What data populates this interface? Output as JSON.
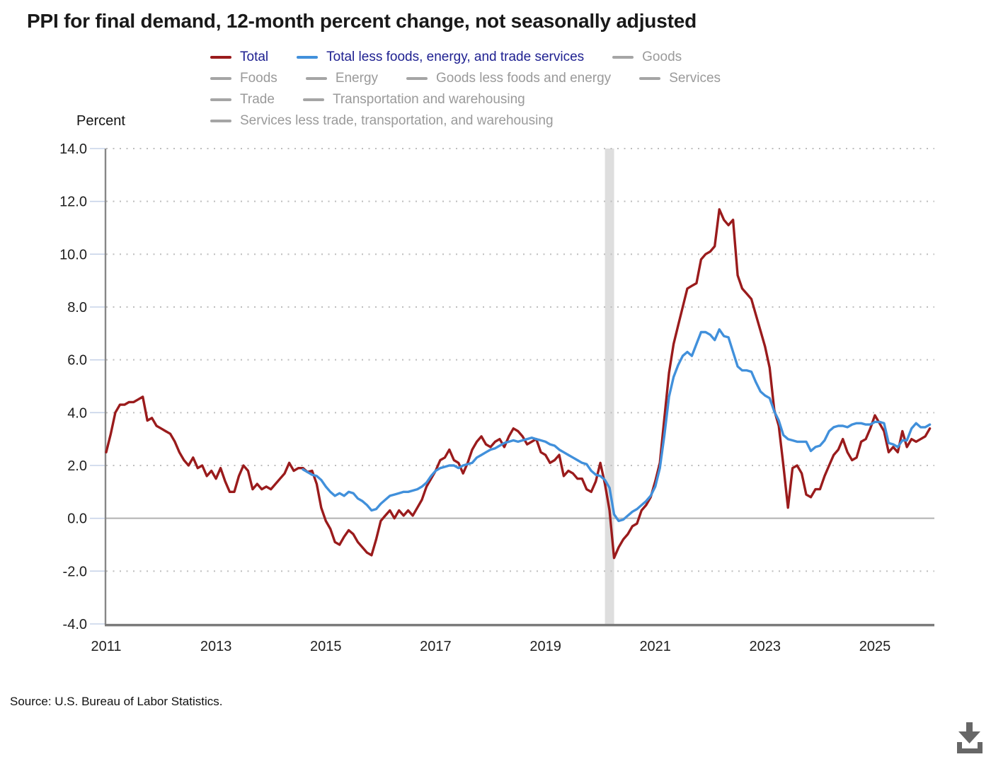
{
  "source": {
    "text": "Source: U.S. Bureau of Labor Statistics."
  },
  "legend": {
    "active_text_color": "#1F2191",
    "inactive_text_color": "#9A9A9A",
    "inactive_swatch_color": "#A5A5A5",
    "rows": [
      [
        {
          "label": "Total",
          "color": "#9A1B1C",
          "active": true
        },
        {
          "label": "Total less foods, energy, and trade services",
          "color": "#4190DB",
          "active": true
        },
        {
          "label": "Goods",
          "color": "#A5A5A5",
          "active": false
        }
      ],
      [
        {
          "label": "Foods",
          "color": "#A5A5A5",
          "active": false
        },
        {
          "label": "Energy",
          "color": "#A5A5A5",
          "active": false
        },
        {
          "label": "Goods less foods and energy",
          "color": "#A5A5A5",
          "active": false
        },
        {
          "label": "Services",
          "color": "#A5A5A5",
          "active": false
        }
      ],
      [
        {
          "label": "Trade",
          "color": "#A5A5A5",
          "active": false
        },
        {
          "label": "Transportation and warehousing",
          "color": "#A5A5A5",
          "active": false
        }
      ],
      [
        {
          "label": "Services less trade, transportation, and warehousing",
          "color": "#A5A5A5",
          "active": false
        }
      ]
    ]
  },
  "chart_data": {
    "type": "line",
    "title": "PPI for final demand, 12-month percent change, not seasonally adjusted",
    "ylabel": "Percent",
    "xlabel": "",
    "grid": true,
    "legend_position": "top",
    "y_ticks": [
      14,
      12,
      10,
      8,
      6,
      4,
      2,
      0,
      -2,
      -4
    ],
    "x_ticks": [
      2011,
      2013,
      2015,
      2017,
      2019,
      2021,
      2023,
      2025
    ],
    "y_range": [
      -4,
      14
    ],
    "x_range": [
      2011.0,
      2026.083
    ],
    "recession_band": {
      "start": 2020.083,
      "end": 2020.25
    },
    "colors": {
      "gridline": "#BDBDBD",
      "zero_line": "#B1B1B1",
      "axis_left": "#878787",
      "axis_bottom": "#7A7A7A",
      "tick": "#C7D3E8",
      "recession_band": "#DEDEDE",
      "download_icon": "#676767"
    },
    "series": [
      {
        "name": "Total",
        "color": "#9A1B1C",
        "visible": true,
        "start": "2011-01",
        "values": [
          2.5,
          3.2,
          4.0,
          4.3,
          4.3,
          4.4,
          4.4,
          4.5,
          4.6,
          3.7,
          3.8,
          3.5,
          3.4,
          3.3,
          3.2,
          2.9,
          2.5,
          2.2,
          2.0,
          2.3,
          1.9,
          2.0,
          1.6,
          1.8,
          1.5,
          1.9,
          1.4,
          1.0,
          1.0,
          1.6,
          2.0,
          1.8,
          1.1,
          1.3,
          1.1,
          1.2,
          1.1,
          1.3,
          1.5,
          1.7,
          2.1,
          1.8,
          1.9,
          1.9,
          1.75,
          1.8,
          1.3,
          0.4,
          -0.1,
          -0.4,
          -0.9,
          -1.0,
          -0.7,
          -0.45,
          -0.6,
          -0.9,
          -1.1,
          -1.3,
          -1.4,
          -0.8,
          -0.1,
          0.1,
          0.3,
          0.0,
          0.3,
          0.1,
          0.3,
          0.1,
          0.4,
          0.7,
          1.2,
          1.5,
          1.8,
          2.2,
          2.3,
          2.6,
          2.2,
          2.1,
          1.7,
          2.1,
          2.6,
          2.9,
          3.1,
          2.8,
          2.7,
          2.9,
          3.0,
          2.7,
          3.1,
          3.4,
          3.3,
          3.1,
          2.8,
          2.9,
          3.0,
          2.5,
          2.4,
          2.1,
          2.2,
          2.4,
          1.6,
          1.8,
          1.7,
          1.5,
          1.5,
          1.1,
          1.0,
          1.4,
          2.1,
          1.3,
          0.3,
          -1.5,
          -1.1,
          -0.8,
          -0.6,
          -0.3,
          -0.2,
          0.3,
          0.5,
          0.8,
          1.4,
          2.1,
          3.8,
          5.5,
          6.6,
          7.3,
          8.0,
          8.7,
          8.8,
          8.9,
          9.8,
          10.0,
          10.1,
          10.3,
          11.7,
          11.3,
          11.1,
          11.3,
          9.2,
          8.7,
          8.5,
          8.3,
          7.7,
          7.1,
          6.5,
          5.7,
          4.1,
          3.5,
          2.0,
          0.4,
          1.9,
          2.0,
          1.7,
          0.9,
          0.8,
          1.1,
          1.1,
          1.6,
          2.0,
          2.4,
          2.6,
          3.0,
          2.5,
          2.2,
          2.3,
          2.9,
          3.0,
          3.4,
          3.9,
          3.6,
          3.3,
          2.5,
          2.7,
          2.5,
          3.3,
          2.7,
          3.0,
          2.9,
          3.0,
          3.1,
          3.4
        ]
      },
      {
        "name": "Total less foods, energy, and trade services",
        "color": "#4190DB",
        "visible": true,
        "start": "2014-08",
        "values": [
          1.85,
          1.75,
          1.65,
          1.6,
          1.45,
          1.2,
          1.0,
          0.85,
          0.95,
          0.85,
          1.0,
          0.95,
          0.75,
          0.65,
          0.5,
          0.3,
          0.35,
          0.55,
          0.7,
          0.85,
          0.9,
          0.95,
          1.0,
          1.0,
          1.05,
          1.1,
          1.2,
          1.35,
          1.6,
          1.8,
          1.9,
          1.95,
          2.0,
          2.0,
          1.9,
          2.0,
          2.05,
          2.1,
          2.3,
          2.4,
          2.5,
          2.6,
          2.65,
          2.75,
          2.85,
          2.9,
          2.95,
          2.9,
          2.95,
          3.0,
          3.05,
          3.0,
          2.95,
          2.9,
          2.8,
          2.75,
          2.6,
          2.5,
          2.4,
          2.3,
          2.2,
          2.1,
          2.05,
          1.8,
          1.65,
          1.6,
          1.45,
          1.15,
          0.15,
          -0.1,
          -0.05,
          0.1,
          0.25,
          0.35,
          0.5,
          0.65,
          0.85,
          1.2,
          1.9,
          3.15,
          4.6,
          5.35,
          5.8,
          6.15,
          6.3,
          6.15,
          6.6,
          7.05,
          7.05,
          6.95,
          6.75,
          7.15,
          6.9,
          6.85,
          6.3,
          5.75,
          5.6,
          5.6,
          5.55,
          5.15,
          4.8,
          4.65,
          4.55,
          4.05,
          3.7,
          3.15,
          3.0,
          2.95,
          2.9,
          2.9,
          2.9,
          2.55,
          2.7,
          2.75,
          2.95,
          3.3,
          3.45,
          3.5,
          3.5,
          3.45,
          3.55,
          3.6,
          3.6,
          3.55,
          3.55,
          3.65,
          3.65,
          3.6,
          2.85,
          2.8,
          2.7,
          2.95,
          2.95,
          3.4,
          3.6,
          3.45,
          3.45,
          3.55
        ]
      },
      {
        "name": "Goods",
        "visible": false
      },
      {
        "name": "Foods",
        "visible": false
      },
      {
        "name": "Energy",
        "visible": false
      },
      {
        "name": "Goods less foods and energy",
        "visible": false
      },
      {
        "name": "Services",
        "visible": false
      },
      {
        "name": "Trade",
        "visible": false
      },
      {
        "name": "Transportation and warehousing",
        "visible": false
      },
      {
        "name": "Services less trade, transportation, and warehousing",
        "visible": false
      }
    ]
  }
}
